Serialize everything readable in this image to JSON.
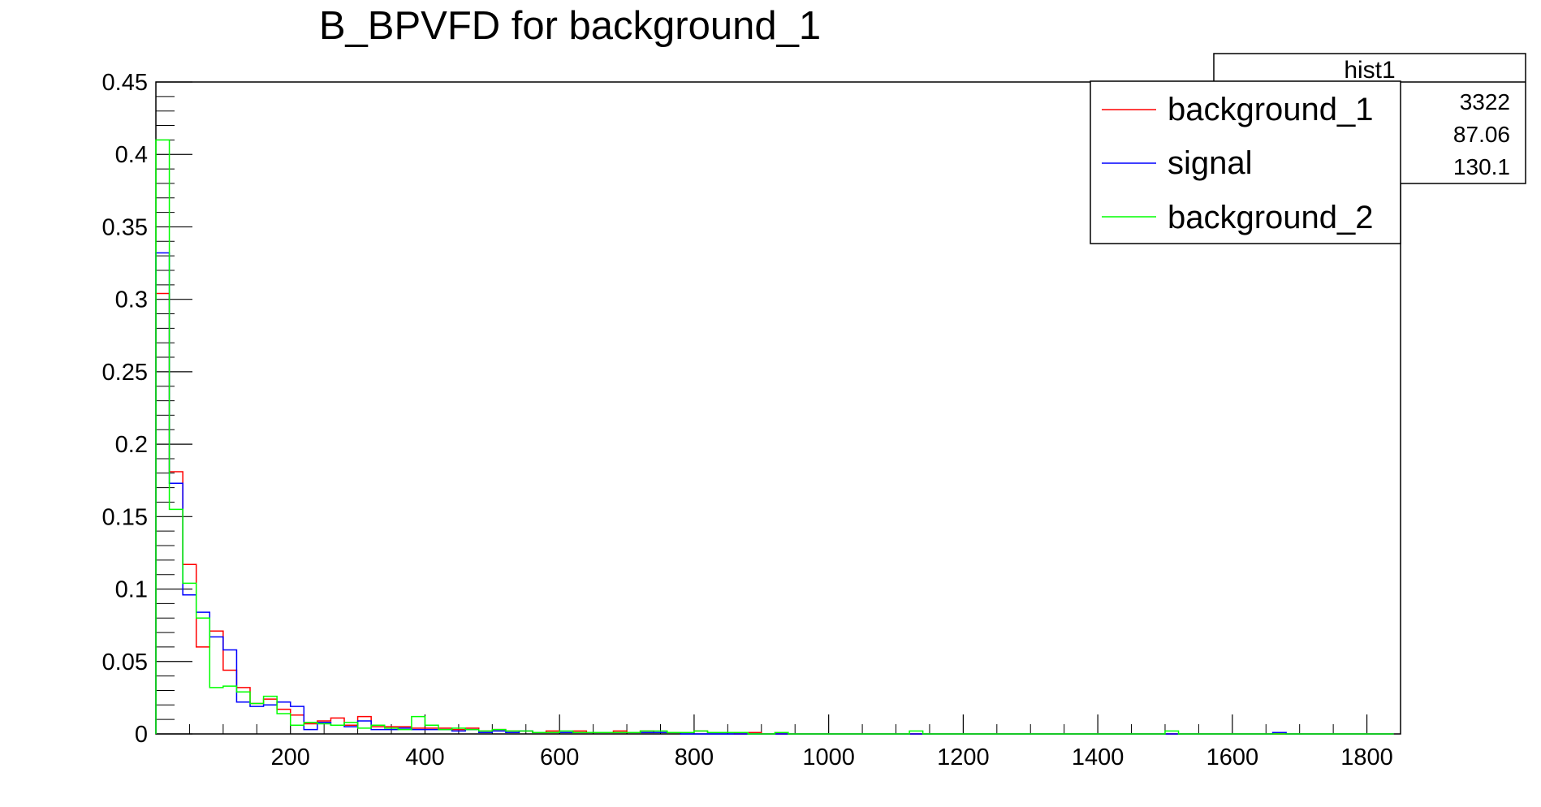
{
  "chart_data": {
    "type": "histogram",
    "title": "B_BPVFD for background_1",
    "xlim": [
      0,
      1850
    ],
    "ylim": [
      0,
      0.45
    ],
    "bin_width": 20,
    "x_ticks": [
      200,
      400,
      600,
      800,
      1000,
      1200,
      1400,
      1600,
      1800
    ],
    "y_ticks": [
      0,
      0.05,
      0.1,
      0.15,
      0.2,
      0.25,
      0.3,
      0.35,
      0.4,
      0.45
    ],
    "y_tick_labels": [
      "0",
      "0.05",
      "0.1",
      "0.15",
      "0.2",
      "0.25",
      "0.3",
      "0.35",
      "0.4",
      "0.45"
    ],
    "legend_position": "top-right",
    "stats_box": {
      "title": "hist1",
      "values": [
        "3322",
        "87.06",
        "130.1"
      ]
    },
    "series": [
      {
        "name": "background_1",
        "color": "#ff0000",
        "values": [
          0.304,
          0.181,
          0.117,
          0.06,
          0.071,
          0.044,
          0.032,
          0.021,
          0.024,
          0.017,
          0.013,
          0.007,
          0.009,
          0.011,
          0.006,
          0.012,
          0.005,
          0.005,
          0.005,
          0.004,
          0.004,
          0.004,
          0.003,
          0.004,
          0.002,
          0.003,
          0.002,
          0.002,
          0.001,
          0.002,
          0.001,
          0.002,
          0.001,
          0.001,
          0.002,
          0.001,
          0.002,
          0.001,
          0.001,
          0.001,
          0.002,
          0.001,
          0.001,
          0.0,
          0.001,
          0.0,
          0.0,
          0.0,
          0.0,
          0.0,
          0.0,
          0.0,
          0.0,
          0.0,
          0.0,
          0.0,
          0.0,
          0.0,
          0.0,
          0.0,
          0.0,
          0.0,
          0.0,
          0.0,
          0.0,
          0.0,
          0.0,
          0.0,
          0.0,
          0.0,
          0.0,
          0.0,
          0.0,
          0.0,
          0.0,
          0.0,
          0.0,
          0.0,
          0.0,
          0.0,
          0.0,
          0.0,
          0.0,
          0.0,
          0.0,
          0.0,
          0.0,
          0.0,
          0.0,
          0.0,
          0.0,
          0.0
        ]
      },
      {
        "name": "signal",
        "color": "#0000ff",
        "values": [
          0.332,
          0.173,
          0.096,
          0.084,
          0.067,
          0.058,
          0.022,
          0.019,
          0.02,
          0.022,
          0.019,
          0.003,
          0.008,
          0.006,
          0.005,
          0.009,
          0.003,
          0.003,
          0.004,
          0.003,
          0.003,
          0.003,
          0.002,
          0.003,
          0.001,
          0.002,
          0.001,
          0.002,
          0.001,
          0.001,
          0.001,
          0.001,
          0.001,
          0.001,
          0.001,
          0.001,
          0.001,
          0.001,
          0.001,
          0.0,
          0.0,
          0.0,
          0.0,
          0.0,
          0.0,
          0.0,
          0.0,
          0.0,
          0.0,
          0.0,
          0.0,
          0.0,
          0.0,
          0.0,
          0.0,
          0.0,
          0.0,
          0.0,
          0.0,
          0.0,
          0.0,
          0.0,
          0.0,
          0.0,
          0.0,
          0.0,
          0.0,
          0.0,
          0.0,
          0.0,
          0.0,
          0.0,
          0.0,
          0.0,
          0.0,
          0.0,
          0.0,
          0.0,
          0.0,
          0.0,
          0.0,
          0.0,
          0.0,
          0.001,
          0.0,
          0.0,
          0.0,
          0.0,
          0.0,
          0.0,
          0.0,
          0.0
        ]
      },
      {
        "name": "background_2",
        "color": "#00ff00",
        "values": [
          0.41,
          0.155,
          0.104,
          0.08,
          0.032,
          0.033,
          0.029,
          0.021,
          0.026,
          0.014,
          0.006,
          0.008,
          0.007,
          0.006,
          0.008,
          0.004,
          0.006,
          0.004,
          0.003,
          0.012,
          0.006,
          0.003,
          0.004,
          0.003,
          0.002,
          0.003,
          0.002,
          0.002,
          0.001,
          0.001,
          0.002,
          0.001,
          0.001,
          0.001,
          0.001,
          0.001,
          0.002,
          0.002,
          0.001,
          0.001,
          0.002,
          0.001,
          0.001,
          0.001,
          0.0,
          0.0,
          0.001,
          0.0,
          0.0,
          0.0,
          0.0,
          0.0,
          0.0,
          0.0,
          0.0,
          0.0,
          0.002,
          0.0,
          0.0,
          0.0,
          0.0,
          0.0,
          0.0,
          0.0,
          0.0,
          0.0,
          0.0,
          0.0,
          0.0,
          0.0,
          0.0,
          0.0,
          0.0,
          0.0,
          0.0,
          0.002,
          0.0,
          0.0,
          0.0,
          0.0,
          0.0,
          0.0,
          0.0,
          0.0,
          0.0,
          0.0,
          0.0,
          0.0,
          0.0,
          0.0,
          0.0,
          0.0
        ]
      }
    ]
  }
}
